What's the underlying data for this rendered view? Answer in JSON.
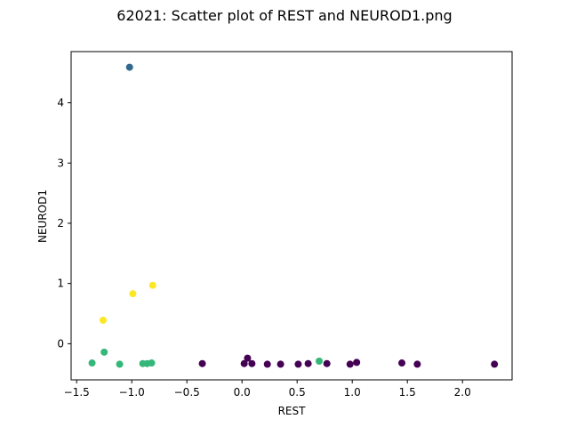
{
  "chart_data": {
    "type": "scatter",
    "title": "62021: Scatter plot of REST and NEUROD1.png",
    "xlabel": "REST",
    "ylabel": "NEUROD1",
    "xlim": [
      -1.55,
      2.45
    ],
    "ylim": [
      -0.6,
      4.85
    ],
    "xticks": [
      -1.5,
      -1.0,
      -0.5,
      0.0,
      0.5,
      1.0,
      1.5,
      2.0
    ],
    "xtick_labels": [
      "−1.5",
      "−1.0",
      "−0.5",
      "0.0",
      "0.5",
      "1.0",
      "1.5",
      "2.0"
    ],
    "yticks": [
      0,
      1,
      2,
      3,
      4
    ],
    "ytick_labels": [
      "0",
      "1",
      "2",
      "3",
      "4"
    ],
    "grid": false,
    "colors": {
      "purple": "#440154",
      "blue": "#31688e",
      "green": "#35b779",
      "yellow": "#fde725"
    },
    "points": [
      {
        "x": -1.02,
        "y": 4.59,
        "color": "blue"
      },
      {
        "x": -0.99,
        "y": 0.83,
        "color": "yellow"
      },
      {
        "x": -0.81,
        "y": 0.97,
        "color": "yellow"
      },
      {
        "x": -1.26,
        "y": 0.39,
        "color": "yellow"
      },
      {
        "x": -1.36,
        "y": -0.32,
        "color": "green"
      },
      {
        "x": -1.25,
        "y": -0.14,
        "color": "green"
      },
      {
        "x": -1.11,
        "y": -0.34,
        "color": "green"
      },
      {
        "x": -0.9,
        "y": -0.33,
        "color": "green"
      },
      {
        "x": -0.86,
        "y": -0.33,
        "color": "green"
      },
      {
        "x": -0.82,
        "y": -0.32,
        "color": "green"
      },
      {
        "x": 0.7,
        "y": -0.29,
        "color": "green"
      },
      {
        "x": -0.36,
        "y": -0.33,
        "color": "purple"
      },
      {
        "x": 0.02,
        "y": -0.33,
        "color": "purple"
      },
      {
        "x": 0.05,
        "y": -0.24,
        "color": "purple"
      },
      {
        "x": 0.09,
        "y": -0.33,
        "color": "purple"
      },
      {
        "x": 0.23,
        "y": -0.34,
        "color": "purple"
      },
      {
        "x": 0.35,
        "y": -0.34,
        "color": "purple"
      },
      {
        "x": 0.51,
        "y": -0.34,
        "color": "purple"
      },
      {
        "x": 0.6,
        "y": -0.33,
        "color": "purple"
      },
      {
        "x": 0.77,
        "y": -0.33,
        "color": "purple"
      },
      {
        "x": 0.98,
        "y": -0.34,
        "color": "purple"
      },
      {
        "x": 1.04,
        "y": -0.31,
        "color": "purple"
      },
      {
        "x": 1.45,
        "y": -0.32,
        "color": "purple"
      },
      {
        "x": 1.59,
        "y": -0.34,
        "color": "purple"
      },
      {
        "x": 2.29,
        "y": -0.34,
        "color": "purple"
      }
    ]
  }
}
